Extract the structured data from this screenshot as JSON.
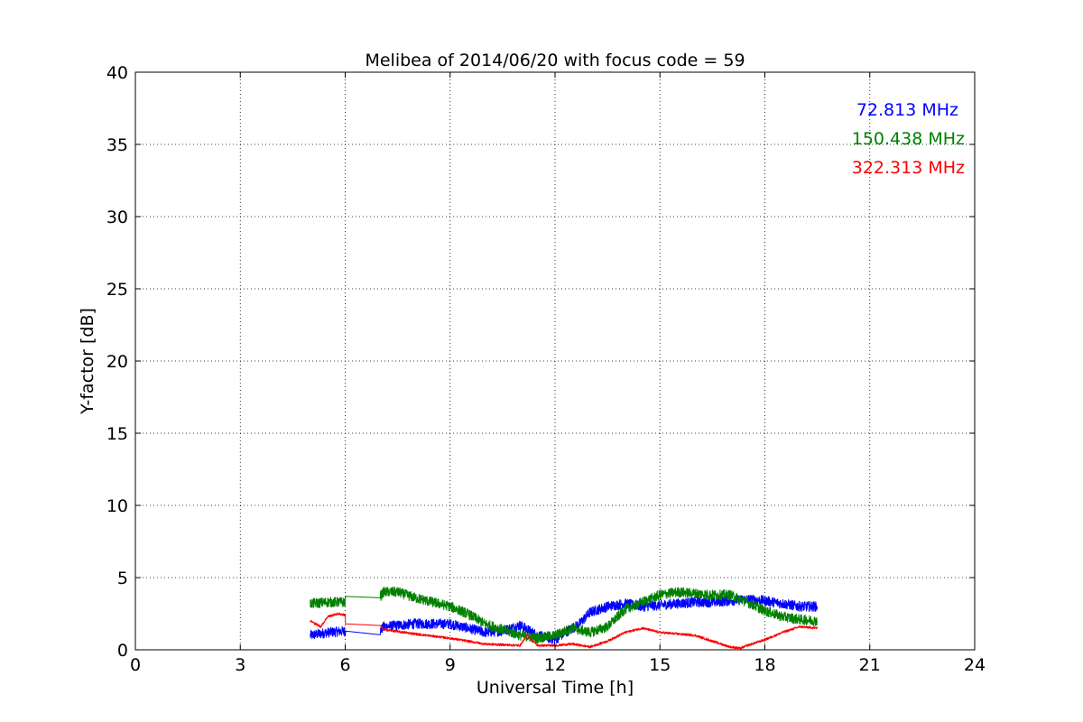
{
  "chart_data": {
    "type": "line",
    "title": "Melibea of 2014/06/20 with focus code = 59",
    "xlabel": "Universal Time [h]",
    "ylabel": "Y-factor [dB]",
    "xlim": [
      0,
      24
    ],
    "ylim": [
      0,
      40
    ],
    "xticks": [
      "0",
      "3",
      "6",
      "9",
      "12",
      "15",
      "18",
      "21",
      "24"
    ],
    "yticks": [
      "0",
      "5",
      "10",
      "15",
      "20",
      "25",
      "30",
      "35",
      "40"
    ],
    "grid": true,
    "legend": "top-right",
    "series": [
      {
        "name": "72.813 MHz",
        "color": "#0000ff",
        "noise": 0.35,
        "x": [
          5.0,
          5.5,
          6.0,
          6.01,
          7.0,
          7.1,
          8.0,
          9.0,
          10.0,
          10.5,
          11.0,
          11.5,
          12.0,
          12.3,
          12.7,
          13.0,
          13.5,
          14.0,
          14.5,
          15.0,
          15.5,
          16.0,
          16.5,
          17.0,
          17.5,
          18.0,
          18.5,
          19.0,
          19.5
        ],
        "y": [
          1.0,
          1.2,
          1.3,
          1.3,
          1.3,
          1.6,
          1.8,
          1.8,
          1.2,
          1.3,
          1.7,
          1.0,
          0.7,
          1.2,
          1.8,
          2.6,
          3.0,
          3.2,
          3.0,
          3.1,
          3.2,
          3.3,
          3.3,
          3.4,
          3.5,
          3.4,
          3.2,
          3.0,
          3.0
        ]
      },
      {
        "name": "150.438 MHz",
        "color": "#008000",
        "noise": 0.35,
        "x": [
          5.0,
          5.5,
          6.0,
          6.01,
          7.0,
          7.1,
          7.5,
          8.0,
          8.5,
          9.0,
          9.5,
          10.0,
          10.5,
          11.0,
          11.5,
          12.0,
          12.5,
          13.0,
          13.5,
          14.0,
          14.5,
          15.0,
          15.5,
          16.0,
          16.5,
          17.0,
          17.5,
          18.0,
          18.5,
          19.0,
          19.5
        ],
        "y": [
          3.2,
          3.3,
          3.3,
          3.7,
          3.7,
          4.0,
          4.0,
          3.6,
          3.3,
          3.0,
          2.5,
          1.8,
          1.4,
          1.0,
          0.8,
          1.0,
          1.5,
          1.2,
          1.6,
          2.8,
          3.3,
          3.8,
          4.0,
          3.9,
          3.8,
          3.8,
          3.3,
          2.7,
          2.3,
          2.1,
          2.0
        ]
      },
      {
        "name": "322.313 MHz",
        "color": "#ff0000",
        "noise": 0.08,
        "x": [
          5.0,
          5.3,
          5.5,
          5.8,
          6.0,
          6.01,
          7.0,
          7.1,
          8.0,
          9.0,
          10.0,
          11.0,
          11.2,
          11.5,
          12.0,
          12.5,
          13.0,
          13.5,
          14.0,
          14.5,
          15.0,
          15.5,
          16.0,
          16.5,
          17.0,
          17.3,
          17.5,
          18.0,
          18.5,
          19.0,
          19.5
        ],
        "y": [
          2.0,
          1.6,
          2.3,
          2.5,
          2.4,
          1.8,
          1.7,
          1.4,
          1.1,
          0.8,
          0.4,
          0.3,
          1.0,
          0.3,
          0.3,
          0.4,
          0.2,
          0.6,
          1.2,
          1.5,
          1.2,
          1.1,
          1.0,
          0.6,
          0.2,
          0.1,
          0.3,
          0.7,
          1.2,
          1.6,
          1.5
        ]
      }
    ]
  }
}
